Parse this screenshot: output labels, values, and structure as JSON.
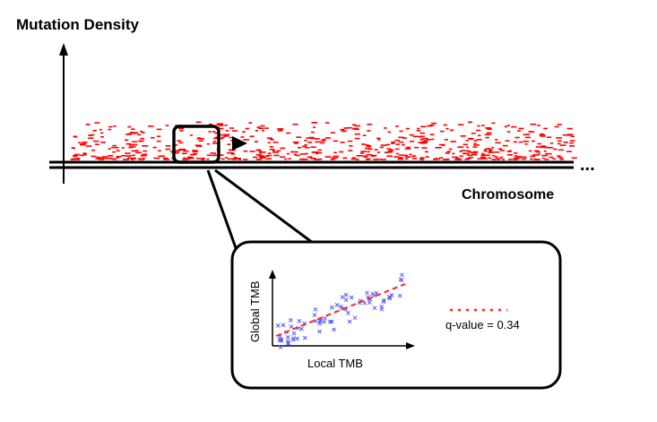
{
  "labels": {
    "y_axis_title": "Mutation Density",
    "x_axis_title": "Chromosome",
    "ellipsis": "...",
    "inset_ylabel": "Global TMB",
    "inset_xlabel": "Local TMB",
    "q_value": "q-value = 0.34"
  },
  "colors": {
    "mutation_dash": "#ff0000",
    "scatter_point": "#5555ff",
    "regression_line": "#ff2222",
    "stroke": "#000000"
  }
}
